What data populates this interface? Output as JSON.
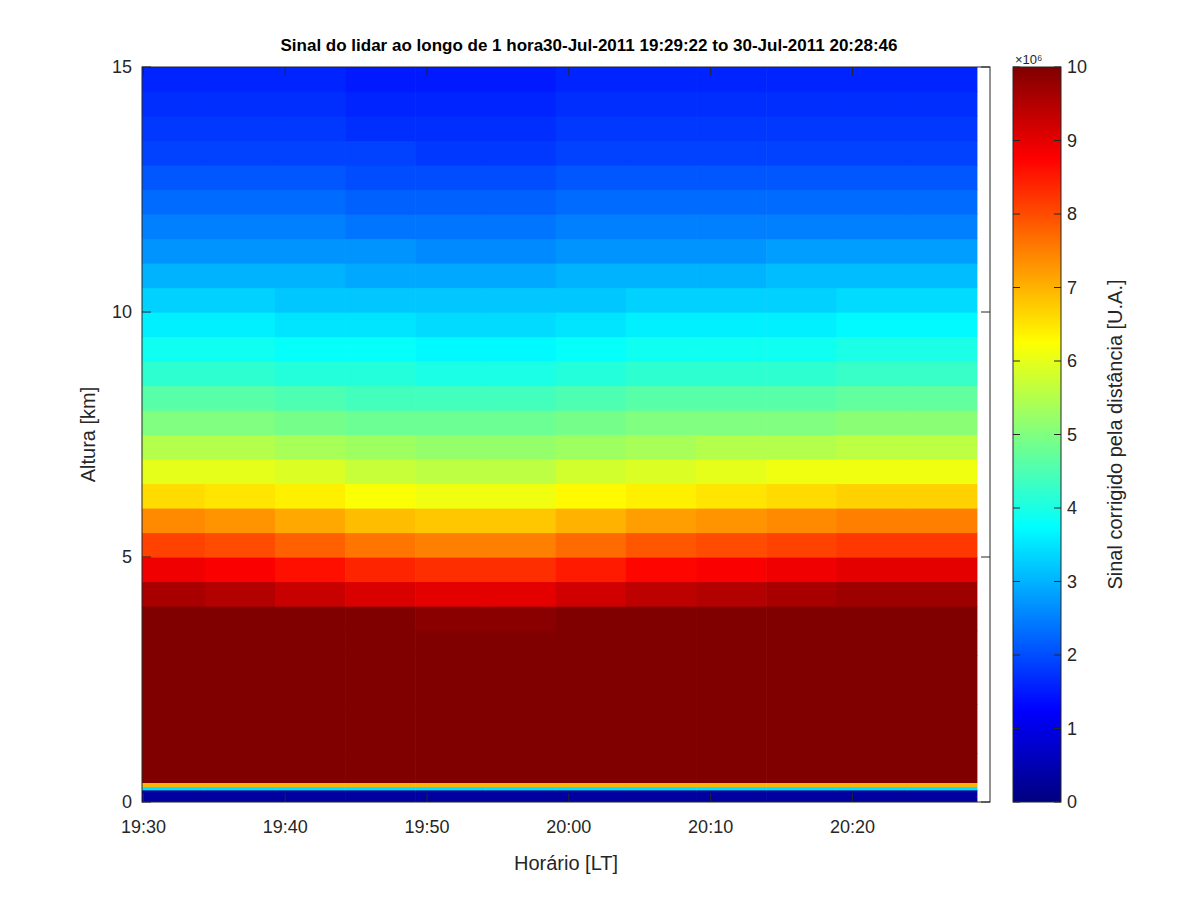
{
  "chart_data": {
    "type": "heatmap",
    "title": "Sinal do lidar ao longo de 1 hora30-Jul-2011 19:29:22 to 30-Jul-2011 20:28:46",
    "x_label": "Horário [LT]",
    "y_label": "Altura [km]",
    "colorbar_label": "Sinal corrigido pela distância [U.A.]",
    "colorbar_multiplier": "×10⁶",
    "xlim": [
      1169.9,
      1229.7
    ],
    "xticks": [
      {
        "value": 1170,
        "label": "19:30"
      },
      {
        "value": 1180,
        "label": "19:40"
      },
      {
        "value": 1190,
        "label": "19:50"
      },
      {
        "value": 1200,
        "label": "20:00"
      },
      {
        "value": 1210,
        "label": "20:10"
      },
      {
        "value": 1220,
        "label": "20:20"
      }
    ],
    "ylim": [
      0,
      15
    ],
    "yticks": [
      0,
      5,
      10,
      15
    ],
    "x_edges": [
      1169.37,
      1174.32,
      1179.27,
      1184.22,
      1189.17,
      1194.12,
      1199.07,
      1204.02,
      1208.97,
      1213.92,
      1218.87,
      1223.82,
      1228.77
    ],
    "y_edges": [
      0,
      0.25,
      0.32,
      0.4,
      1,
      2,
      3,
      3.5,
      4,
      4.5,
      5,
      5.5,
      6,
      6.5,
      7,
      7.5,
      8,
      8.5,
      9,
      9.5,
      10,
      10.5,
      11,
      11.5,
      12,
      12.5,
      13,
      13.5,
      14,
      14.5,
      15
    ],
    "cells": [
      [
        0.3,
        0.3,
        0.3,
        0.3,
        0.3,
        0.3,
        0.3,
        0.3,
        0.3,
        0.3,
        0.3,
        0.3
      ],
      [
        3.5,
        3.5,
        3.5,
        3.5,
        3.5,
        3.5,
        3.5,
        3.5,
        3.5,
        3.5,
        3.5,
        3.5
      ],
      [
        7,
        7,
        7,
        7,
        7,
        7,
        7,
        7,
        7,
        7,
        7,
        7
      ],
      [
        14,
        14,
        14,
        14,
        14,
        14,
        14,
        14,
        14,
        14,
        14,
        14
      ],
      [
        14,
        14,
        14,
        14,
        14,
        14,
        14,
        14,
        14,
        14,
        14,
        14
      ],
      [
        13,
        13,
        13,
        13,
        13,
        13,
        13,
        13,
        13,
        13,
        13,
        13
      ],
      [
        11.5,
        11.5,
        11.5,
        11.5,
        11,
        11.5,
        11.5,
        11.5,
        11.5,
        11.5,
        11.5,
        11.5
      ],
      [
        10.6,
        10.5,
        10.3,
        10.1,
        9.9,
        9.9,
        10.1,
        10.3,
        10.4,
        10.5,
        10.6,
        10.6
      ],
      [
        9.6,
        9.5,
        9.3,
        9.1,
        9.0,
        9.0,
        9.2,
        9.4,
        9.5,
        9.6,
        9.7,
        9.7
      ],
      [
        8.9,
        8.8,
        8.6,
        8.4,
        8.3,
        8.3,
        8.5,
        8.7,
        8.8,
        8.9,
        9.0,
        9.0
      ],
      [
        8.1,
        8.0,
        7.8,
        7.6,
        7.5,
        7.5,
        7.7,
        7.9,
        8.0,
        8.1,
        8.2,
        8.2
      ],
      [
        7.4,
        7.3,
        7.1,
        6.9,
        6.8,
        6.8,
        7.0,
        7.2,
        7.3,
        7.4,
        7.5,
        7.5
      ],
      [
        6.6,
        6.5,
        6.4,
        6.2,
        6.1,
        6.1,
        6.3,
        6.4,
        6.5,
        6.6,
        6.7,
        6.7
      ],
      [
        6.0,
        6.0,
        5.9,
        5.7,
        5.6,
        5.6,
        5.8,
        5.9,
        6.0,
        6.1,
        6.1,
        6.1
      ],
      [
        5.5,
        5.5,
        5.4,
        5.3,
        5.2,
        5.2,
        5.3,
        5.4,
        5.5,
        5.5,
        5.6,
        5.6
      ],
      [
        5.0,
        5.0,
        4.9,
        4.8,
        4.8,
        4.8,
        4.9,
        5.0,
        5.0,
        5.0,
        5.1,
        5.1
      ],
      [
        4.6,
        4.6,
        4.5,
        4.4,
        4.4,
        4.4,
        4.5,
        4.6,
        4.6,
        4.6,
        4.7,
        4.7
      ],
      [
        4.2,
        4.2,
        4.1,
        4.1,
        4.0,
        4.0,
        4.1,
        4.2,
        4.2,
        4.2,
        4.3,
        4.3
      ],
      [
        3.9,
        3.9,
        3.8,
        3.8,
        3.7,
        3.7,
        3.8,
        3.9,
        3.9,
        3.9,
        4.0,
        4.0
      ],
      [
        3.6,
        3.6,
        3.5,
        3.5,
        3.4,
        3.4,
        3.5,
        3.6,
        3.6,
        3.6,
        3.7,
        3.7
      ],
      [
        3.3,
        3.3,
        3.2,
        3.2,
        3.2,
        3.2,
        3.2,
        3.3,
        3.3,
        3.3,
        3.4,
        3.4
      ],
      [
        3.0,
        3.0,
        3.0,
        2.9,
        2.9,
        2.9,
        3.0,
        3.0,
        3.0,
        3.1,
        3.1,
        3.1
      ],
      [
        2.7,
        2.7,
        2.7,
        2.7,
        2.6,
        2.6,
        2.7,
        2.7,
        2.7,
        2.8,
        2.8,
        2.8
      ],
      [
        2.5,
        2.5,
        2.5,
        2.4,
        2.4,
        2.4,
        2.5,
        2.5,
        2.5,
        2.5,
        2.5,
        2.5
      ],
      [
        2.3,
        2.3,
        2.3,
        2.2,
        2.2,
        2.2,
        2.3,
        2.3,
        2.3,
        2.3,
        2.3,
        2.3
      ],
      [
        2.1,
        2.1,
        2.1,
        2.0,
        2.0,
        2.0,
        2.1,
        2.1,
        2.1,
        2.1,
        2.1,
        2.1
      ],
      [
        1.9,
        1.9,
        1.9,
        1.9,
        1.8,
        1.8,
        1.9,
        1.9,
        1.9,
        1.9,
        1.9,
        1.9
      ],
      [
        1.8,
        1.8,
        1.8,
        1.7,
        1.7,
        1.7,
        1.8,
        1.8,
        1.8,
        1.8,
        1.8,
        1.8
      ],
      [
        1.7,
        1.7,
        1.7,
        1.6,
        1.6,
        1.6,
        1.7,
        1.7,
        1.7,
        1.7,
        1.7,
        1.7
      ],
      [
        1.6,
        1.6,
        1.6,
        1.5,
        1.5,
        1.5,
        1.6,
        1.6,
        1.6,
        1.6,
        1.6,
        1.6
      ]
    ],
    "clim": [
      0,
      10
    ],
    "cticks": [
      0,
      1,
      2,
      3,
      4,
      5,
      6,
      7,
      8,
      9,
      10
    ]
  }
}
